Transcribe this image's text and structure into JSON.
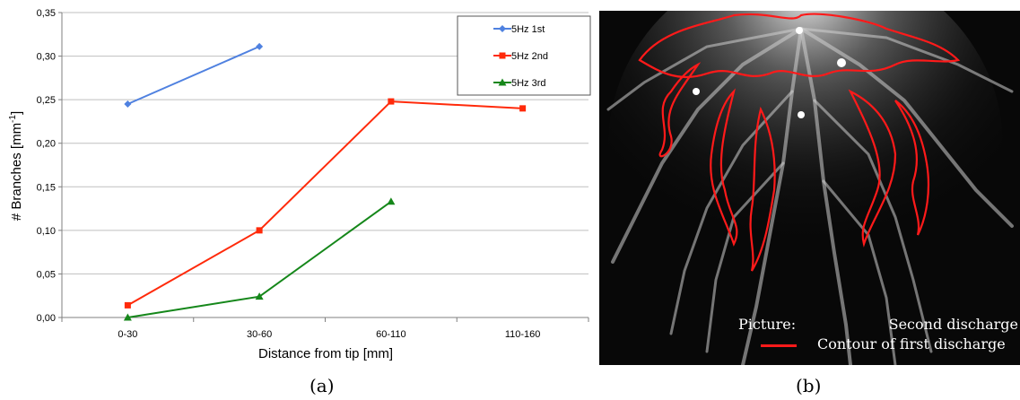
{
  "chart_data": {
    "type": "line",
    "categories": [
      "0-30",
      "30-60",
      "60-110",
      "110-160"
    ],
    "series": [
      {
        "name": "5Hz 1st",
        "color": "#4f81e0",
        "marker": "diamond",
        "values": [
          0.245,
          0.311,
          null,
          null
        ]
      },
      {
        "name": "5Hz 2nd",
        "color": "#ff2a0a",
        "marker": "square",
        "values": [
          0.014,
          0.1,
          0.248,
          0.24
        ]
      },
      {
        "name": "5Hz 3rd",
        "color": "#15871a",
        "marker": "triangle",
        "values": [
          0.0,
          0.024,
          0.133,
          null
        ]
      }
    ],
    "ylim": [
      0,
      0.35
    ],
    "yticks": [
      "0,00",
      "0,05",
      "0,10",
      "0,15",
      "0,20",
      "0,25",
      "0,30",
      "0,35"
    ],
    "ylabel": "# Branches [mm",
    "ylabel_sup": "-1",
    "ylabel_end": "]",
    "xlabel": "Distance from tip [mm]",
    "grid": true,
    "legend_position": "top-right"
  },
  "captions": {
    "a": "(a)",
    "b": "(b)"
  },
  "photo": {
    "label_picture": "Picture:",
    "label_picture_value": "Second discharge",
    "label_contour": "Contour of first discharge",
    "contour_color": "#ff1a1a"
  }
}
